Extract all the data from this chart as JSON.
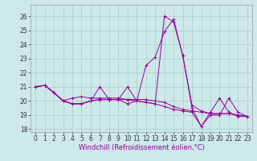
{
  "xlabel": "Windchill (Refroidissement éolien,°C)",
  "background_color": "#cce8e8",
  "grid_color": "#aacccc",
  "line_color": "#990099",
  "xlim": [
    -0.5,
    23.5
  ],
  "ylim": [
    17.8,
    26.8
  ],
  "xticks": [
    0,
    1,
    2,
    3,
    4,
    5,
    6,
    7,
    8,
    9,
    10,
    11,
    12,
    13,
    14,
    15,
    16,
    17,
    18,
    19,
    20,
    21,
    22,
    23
  ],
  "yticks": [
    18,
    19,
    20,
    21,
    22,
    23,
    24,
    25,
    26
  ],
  "series": [
    [
      21.0,
      21.1,
      20.6,
      20.0,
      20.2,
      20.3,
      20.2,
      20.2,
      20.2,
      20.2,
      20.1,
      20.1,
      20.1,
      20.0,
      19.9,
      19.6,
      19.4,
      19.3,
      19.2,
      19.1,
      19.1,
      19.1,
      19.0,
      18.9
    ],
    [
      21.0,
      21.1,
      20.6,
      20.0,
      19.8,
      19.8,
      20.0,
      20.1,
      20.1,
      20.1,
      21.0,
      20.0,
      19.9,
      19.8,
      19.6,
      19.4,
      19.3,
      19.2,
      18.2,
      19.0,
      19.0,
      20.2,
      19.2,
      18.9
    ],
    [
      21.0,
      21.1,
      20.6,
      20.0,
      19.8,
      19.8,
      20.0,
      20.1,
      20.1,
      20.1,
      19.8,
      20.0,
      22.5,
      23.1,
      24.9,
      25.8,
      23.2,
      19.7,
      19.3,
      19.1,
      19.1,
      19.1,
      19.0,
      18.9
    ],
    [
      21.0,
      21.1,
      20.6,
      20.0,
      19.8,
      19.8,
      20.0,
      21.0,
      20.1,
      20.1,
      20.1,
      20.0,
      19.9,
      19.8,
      26.0,
      25.6,
      23.2,
      19.5,
      18.2,
      19.2,
      20.2,
      19.2,
      18.9,
      18.9
    ]
  ],
  "tick_fontsize": 5.5,
  "xlabel_fontsize": 6,
  "marker_size": 2.5,
  "linewidth": 0.7
}
